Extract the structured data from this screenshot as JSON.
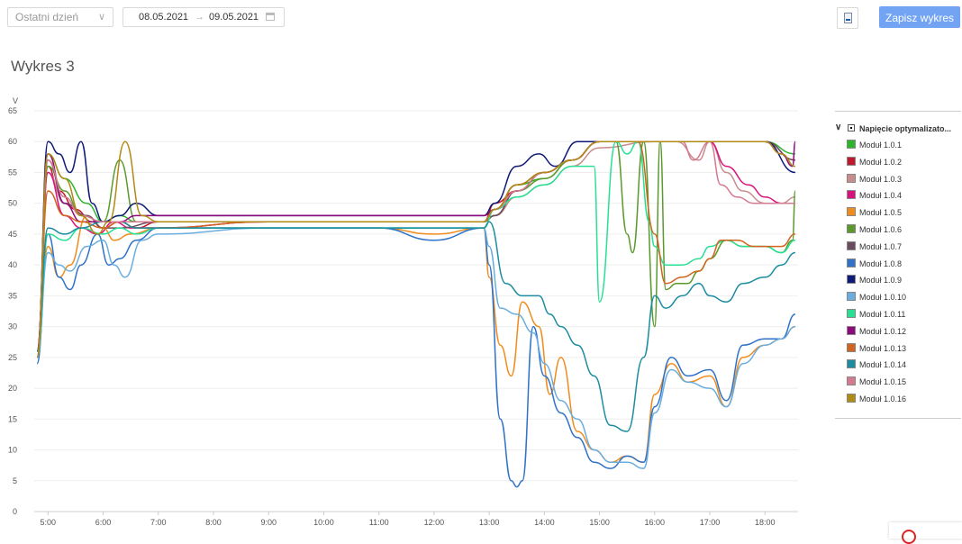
{
  "toolbar": {
    "period_select": "Ostatni dzień",
    "date_from": "08.05.2021",
    "date_arrow": "→",
    "date_to": "09.05.2021",
    "save_label": "Zapisz wykres",
    "pdf_icon": "pdf-file-icon",
    "calendar_icon": "calendar-icon"
  },
  "page": {
    "title": "Wykres 3"
  },
  "legend": {
    "group_label": "Napięcie optymalizato...",
    "items": [
      {
        "name": "Moduł 1.0.1",
        "color": "#2db52d"
      },
      {
        "name": "Moduł 1.0.2",
        "color": "#c0182c"
      },
      {
        "name": "Moduł 1.0.3",
        "color": "#c98c8c"
      },
      {
        "name": "Moduł 1.0.4",
        "color": "#d8127c"
      },
      {
        "name": "Moduł 1.0.5",
        "color": "#f08c1e"
      },
      {
        "name": "Moduł 1.0.6",
        "color": "#5a9a2c"
      },
      {
        "name": "Moduł 1.0.7",
        "color": "#6a4c60"
      },
      {
        "name": "Moduł 1.0.8",
        "color": "#2f72c8"
      },
      {
        "name": "Moduł 1.0.9",
        "color": "#0f1a78"
      },
      {
        "name": "Moduł 1.0.10",
        "color": "#6aaee0"
      },
      {
        "name": "Moduł 1.0.11",
        "color": "#28e094"
      },
      {
        "name": "Moduł 1.0.12",
        "color": "#8c0a7c"
      },
      {
        "name": "Moduł 1.0.13",
        "color": "#d2641e"
      },
      {
        "name": "Moduł 1.0.14",
        "color": "#1c8ca0"
      },
      {
        "name": "Moduł 1.0.15",
        "color": "#d47a90"
      },
      {
        "name": "Moduł 1.0.16",
        "color": "#b08a14"
      }
    ]
  },
  "chart_data": {
    "type": "line",
    "ylabel": "V",
    "ylim": [
      0,
      65
    ],
    "yticks": [
      0,
      5,
      10,
      15,
      20,
      25,
      30,
      35,
      40,
      45,
      50,
      55,
      60,
      65
    ],
    "xlim": [
      4.75,
      18.6
    ],
    "xticks": [
      {
        "v": 5,
        "label": "5:00"
      },
      {
        "v": 6,
        "label": "6:00"
      },
      {
        "v": 7,
        "label": "7:00"
      },
      {
        "v": 8,
        "label": "8:00"
      },
      {
        "v": 9,
        "label": "9:00"
      },
      {
        "v": 10,
        "label": "10:00"
      },
      {
        "v": 11,
        "label": "11:00"
      },
      {
        "v": 12,
        "label": "12:00"
      },
      {
        "v": 13,
        "label": "13:00"
      },
      {
        "v": 14,
        "label": "14:00"
      },
      {
        "v": 15,
        "label": "15:00"
      },
      {
        "v": 16,
        "label": "16:00"
      },
      {
        "v": 17,
        "label": "17:00"
      },
      {
        "v": 18,
        "label": "18:00"
      }
    ],
    "grid": true,
    "legend": "right",
    "series": [
      {
        "name": "Moduł 1.0.1",
        "x": [
          4.8,
          5.0,
          5.3,
          5.7,
          6.0,
          6.3,
          6.6,
          7.0,
          9.0,
          11.0,
          12.9,
          13.1,
          13.5,
          14.0,
          14.5,
          15.0,
          16.0,
          17.0,
          18.0,
          18.55
        ],
        "y": [
          25,
          58,
          54,
          50,
          47,
          48,
          47,
          47,
          47,
          47,
          47,
          49,
          53,
          54,
          57,
          60,
          60,
          60,
          60,
          58
        ]
      },
      {
        "name": "Moduł 1.0.2",
        "x": [
          4.8,
          5.0,
          5.2,
          5.5,
          5.8,
          6.0,
          6.3,
          6.6,
          7.0,
          9.0,
          11.0,
          12.9,
          13.1,
          13.5,
          14.0,
          14.5,
          15.0,
          16.0,
          17.0,
          18.0,
          18.55
        ],
        "y": [
          26,
          56,
          52,
          49,
          47,
          46,
          47,
          46,
          47,
          47,
          47,
          47,
          50,
          52,
          55,
          57,
          60,
          60,
          60,
          60,
          57
        ]
      },
      {
        "name": "Moduł 1.0.3",
        "x": [
          4.8,
          5.0,
          5.3,
          5.7,
          6.0,
          6.3,
          6.6,
          7.0,
          9.0,
          11.0,
          12.9,
          13.1,
          13.5,
          14.0,
          14.5,
          15.0,
          16.0,
          16.4,
          16.8,
          17.0,
          17.3,
          17.6,
          18.0,
          18.3,
          18.55
        ],
        "y": [
          25,
          55,
          50,
          48,
          46,
          47,
          46,
          46,
          47,
          47,
          47,
          48,
          51,
          53,
          56,
          59,
          60,
          60,
          57,
          60,
          55,
          52,
          50,
          50,
          51
        ]
      },
      {
        "name": "Moduł 1.0.4",
        "x": [
          4.8,
          5.0,
          5.3,
          5.6,
          5.9,
          6.2,
          6.5,
          7.0,
          9.0,
          11.0,
          12.9,
          13.1,
          13.5,
          14.0,
          14.5,
          15.0,
          16.0,
          17.0,
          17.3,
          17.7,
          18.0,
          18.3,
          18.55
        ],
        "y": [
          26,
          55,
          48,
          46,
          45,
          47,
          46,
          46,
          47,
          47,
          47,
          48,
          52,
          55,
          57,
          60,
          60,
          60,
          56,
          53,
          51,
          50,
          50
        ]
      },
      {
        "name": "Moduł 1.0.5",
        "x": [
          4.8,
          5.0,
          5.2,
          5.4,
          5.7,
          6.0,
          6.2,
          6.5,
          7.0,
          9.0,
          11.0,
          12.0,
          12.9,
          13.0,
          13.2,
          13.4,
          13.6,
          13.9,
          14.1,
          14.3,
          14.6,
          14.9,
          15.2,
          15.5,
          15.8,
          16.0,
          16.3,
          16.6,
          17.0,
          17.3,
          17.6,
          18.0,
          18.3,
          18.55
        ],
        "y": [
          25,
          43,
          38,
          40,
          48,
          46,
          44,
          45,
          46,
          46,
          46,
          45,
          46,
          38,
          27,
          22,
          34,
          30,
          19,
          25,
          13,
          10,
          8,
          9,
          8,
          19,
          24,
          21,
          22,
          17,
          25,
          27,
          28,
          30
        ]
      },
      {
        "name": "Moduł 1.0.6",
        "x": [
          4.8,
          5.0,
          5.3,
          5.6,
          6.0,
          6.3,
          6.6,
          7.0,
          9.0,
          11.0,
          12.9,
          13.1,
          13.5,
          14.0,
          14.5,
          15.0,
          15.3,
          15.5,
          15.6,
          15.8,
          16.0,
          16.1,
          16.2,
          16.4,
          16.6,
          16.8,
          17.0,
          17.3,
          17.6,
          18.0,
          18.3,
          18.5,
          18.55
        ],
        "y": [
          26,
          56,
          52,
          48,
          47,
          57,
          47,
          47,
          47,
          47,
          47,
          48,
          52,
          54,
          57,
          60,
          60,
          45,
          42,
          60,
          30,
          60,
          36,
          37,
          37,
          39,
          41,
          44,
          43,
          43,
          42,
          44,
          52
        ]
      },
      {
        "name": "Moduł 1.0.7",
        "x": [
          4.8,
          5.0,
          5.3,
          5.7,
          6.0,
          6.3,
          7.0,
          9.0,
          11.0,
          12.9,
          13.1,
          13.5,
          14.0,
          14.5,
          15.0,
          16.0,
          17.0,
          18.0,
          18.55
        ],
        "y": [
          25,
          57,
          50,
          48,
          46,
          46,
          47,
          47,
          47,
          47,
          48,
          52,
          55,
          57,
          60,
          60,
          60,
          60,
          57
        ]
      },
      {
        "name": "Moduł 1.0.8",
        "x": [
          4.8,
          5.0,
          5.2,
          5.4,
          5.6,
          5.9,
          6.1,
          6.3,
          6.6,
          7.0,
          9.0,
          11.0,
          12.0,
          12.9,
          13.0,
          13.2,
          13.4,
          13.5,
          13.6,
          13.8,
          14.0,
          14.3,
          14.6,
          14.9,
          15.2,
          15.5,
          15.8,
          16.0,
          16.3,
          16.6,
          17.0,
          17.3,
          17.6,
          18.0,
          18.3,
          18.55
        ],
        "y": [
          24,
          45,
          38,
          36,
          40,
          45,
          40,
          41,
          44,
          46,
          46,
          46,
          44,
          46,
          40,
          15,
          5,
          4,
          5,
          30,
          22,
          16,
          12,
          8,
          7,
          9,
          8,
          17,
          25,
          22,
          23,
          18,
          27,
          28,
          28,
          32
        ]
      },
      {
        "name": "Moduł 1.0.9",
        "x": [
          4.8,
          5.0,
          5.2,
          5.4,
          5.6,
          5.8,
          6.0,
          6.3,
          6.6,
          7.0,
          9.0,
          11.0,
          12.9,
          13.1,
          13.5,
          13.9,
          14.2,
          14.6,
          15.0,
          16.0,
          17.0,
          18.0,
          18.55
        ],
        "y": [
          25,
          60,
          58,
          55,
          60,
          50,
          47,
          48,
          50,
          48,
          48,
          48,
          48,
          50,
          56,
          58,
          56,
          60,
          60,
          60,
          60,
          60,
          55
        ]
      },
      {
        "name": "Moduł 1.0.10",
        "x": [
          4.8,
          5.0,
          5.2,
          5.4,
          5.7,
          6.0,
          6.2,
          6.4,
          6.7,
          7.0,
          9.0,
          11.0,
          12.9,
          13.0,
          13.2,
          13.5,
          13.8,
          14.0,
          14.3,
          14.6,
          14.9,
          15.2,
          15.5,
          15.8,
          16.0,
          16.3,
          16.6,
          17.0,
          17.3,
          17.6,
          18.0,
          18.3,
          18.55
        ],
        "y": [
          25,
          42,
          40,
          39,
          43,
          44,
          40,
          38,
          44,
          45,
          46,
          46,
          46,
          43,
          33,
          32,
          29,
          24,
          18,
          15,
          10,
          8,
          8,
          7,
          16,
          23,
          21,
          20,
          17,
          24,
          27,
          28,
          30
        ]
      },
      {
        "name": "Moduł 1.0.11",
        "x": [
          4.8,
          5.0,
          5.3,
          5.6,
          6.0,
          6.3,
          6.6,
          7.0,
          9.0,
          11.0,
          12.9,
          13.1,
          13.5,
          14.0,
          14.5,
          14.9,
          15.0,
          15.3,
          15.5,
          15.7,
          15.9,
          16.0,
          16.2,
          16.5,
          16.8,
          17.0,
          17.3,
          17.6,
          18.0,
          18.3,
          18.55
        ],
        "y": [
          25,
          45,
          44,
          46,
          45,
          46,
          45,
          46,
          46,
          46,
          46,
          49,
          51,
          53,
          56,
          56,
          34,
          60,
          58,
          60,
          47,
          43,
          40,
          40,
          41,
          43,
          44,
          43,
          43,
          42,
          44
        ]
      },
      {
        "name": "Moduł 1.0.12",
        "x": [
          4.8,
          5.0,
          5.3,
          5.6,
          6.0,
          6.3,
          6.6,
          7.0,
          9.0,
          11.0,
          12.9,
          13.1,
          13.5,
          14.0,
          14.5,
          15.0,
          16.0,
          17.0,
          17.5,
          18.0,
          18.3,
          18.5,
          18.55
        ],
        "y": [
          26,
          58,
          50,
          47,
          47,
          47,
          48,
          48,
          48,
          48,
          48,
          49,
          53,
          55,
          57,
          60,
          60,
          60,
          60,
          60,
          58,
          56,
          60
        ]
      },
      {
        "name": "Moduł 1.0.13",
        "x": [
          4.8,
          5.0,
          5.3,
          5.6,
          6.0,
          6.3,
          6.6,
          7.0,
          9.0,
          11.0,
          12.9,
          13.1,
          13.5,
          14.0,
          14.5,
          15.0,
          15.7,
          16.0,
          16.2,
          16.5,
          16.8,
          17.0,
          17.2,
          17.5,
          17.8,
          18.0,
          18.3,
          18.55
        ],
        "y": [
          25,
          52,
          48,
          47,
          46,
          47,
          46,
          46,
          47,
          47,
          47,
          49,
          53,
          55,
          57,
          60,
          60,
          45,
          37,
          38,
          39,
          41,
          44,
          44,
          43,
          43,
          43,
          45
        ]
      },
      {
        "name": "Moduł 1.0.14",
        "x": [
          4.8,
          5.0,
          5.3,
          5.6,
          6.0,
          6.3,
          6.6,
          7.0,
          9.0,
          11.0,
          12.9,
          13.0,
          13.3,
          13.6,
          13.9,
          14.1,
          14.3,
          14.6,
          14.9,
          15.2,
          15.5,
          15.8,
          16.0,
          16.2,
          16.5,
          16.8,
          17.0,
          17.3,
          17.6,
          18.0,
          18.3,
          18.55
        ],
        "y": [
          26,
          46,
          45,
          46,
          47,
          47,
          46,
          46,
          46,
          46,
          46,
          47,
          37,
          35,
          35,
          32,
          30,
          27,
          22,
          14,
          13,
          25,
          35,
          33,
          35,
          37,
          35,
          34,
          37,
          38,
          40,
          42
        ]
      },
      {
        "name": "Moduł 1.0.15",
        "x": [
          4.8,
          5.0,
          5.3,
          5.6,
          6.0,
          6.3,
          7.0,
          9.0,
          11.0,
          12.9,
          13.1,
          13.5,
          14.0,
          14.5,
          15.0,
          16.0,
          16.5,
          16.7,
          17.0,
          17.2,
          17.5,
          17.8,
          18.0,
          18.3,
          18.55
        ],
        "y": [
          25,
          57,
          51,
          48,
          47,
          47,
          47,
          47,
          47,
          47,
          49,
          52,
          55,
          57,
          60,
          60,
          60,
          57,
          60,
          53,
          51,
          50,
          50,
          50,
          50
        ]
      },
      {
        "name": "Moduł 1.0.16",
        "x": [
          4.8,
          5.0,
          5.3,
          5.6,
          5.9,
          6.1,
          6.4,
          6.7,
          7.0,
          9.0,
          11.0,
          12.9,
          13.1,
          13.5,
          14.0,
          14.5,
          15.0,
          16.0,
          17.0,
          18.0,
          18.3,
          18.55
        ],
        "y": [
          25,
          58,
          54,
          48,
          45,
          47,
          60,
          48,
          47,
          47,
          47,
          47,
          49,
          53,
          55,
          57,
          60,
          60,
          60,
          60,
          58,
          56
        ]
      }
    ]
  }
}
